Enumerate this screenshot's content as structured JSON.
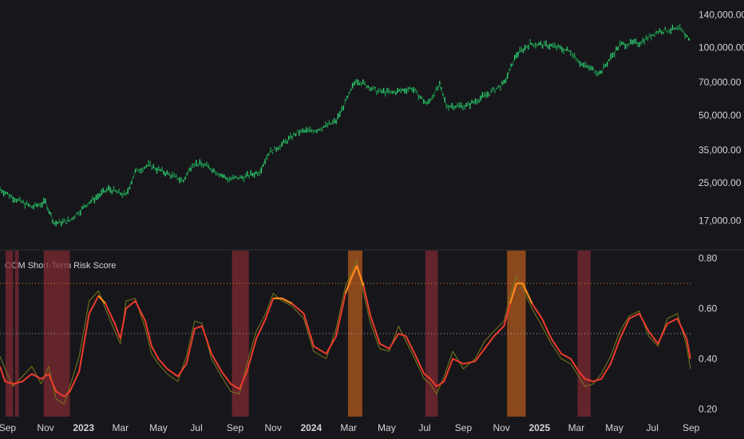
{
  "chart_data": [
    {
      "type": "line",
      "pane": "price",
      "title": "",
      "scale": "log",
      "ylim": [
        14000,
        150000
      ],
      "y_ticks": [
        "140,000.00",
        "100,000.00",
        "70,000.00",
        "50,000.00",
        "35,000.00",
        "25,000.00",
        "17,000.00"
      ],
      "y_tick_values": [
        140000,
        100000,
        70000,
        50000,
        35000,
        25000,
        17000
      ],
      "x": [
        "2022-08-20",
        "2022-09-10",
        "2022-10-10",
        "2022-11-01",
        "2022-11-15",
        "2022-12-10",
        "2023-01-10",
        "2023-02-10",
        "2023-03-10",
        "2023-03-25",
        "2023-04-15",
        "2023-05-15",
        "2023-06-10",
        "2023-06-25",
        "2023-07-15",
        "2023-08-20",
        "2023-09-15",
        "2023-10-10",
        "2023-10-25",
        "2023-11-15",
        "2023-12-10",
        "2024-01-10",
        "2024-02-10",
        "2024-03-13",
        "2024-04-15",
        "2024-05-10",
        "2024-06-10",
        "2024-07-05",
        "2024-07-25",
        "2024-08-05",
        "2024-09-06",
        "2024-10-10",
        "2024-11-05",
        "2024-11-25",
        "2024-12-17",
        "2025-01-20",
        "2025-02-20",
        "2025-03-10",
        "2025-04-08",
        "2025-05-10",
        "2025-06-10",
        "2025-07-10",
        "2025-08-14",
        "2025-08-31"
      ],
      "series": [
        {
          "values": [
            23500,
            21500,
            19500,
            20500,
            16500,
            17000,
            20500,
            23500,
            22000,
            28000,
            30000,
            27500,
            25500,
            30500,
            30000,
            26000,
            26500,
            28000,
            34000,
            37000,
            42000,
            43000,
            47000,
            72000,
            64000,
            63000,
            66000,
            56000,
            68000,
            55000,
            55000,
            62000,
            69000,
            93000,
            104000,
            102000,
            96000,
            84000,
            77000,
            103000,
            105000,
            118000,
            121000,
            108000
          ],
          "color": "#22c55e"
        }
      ]
    },
    {
      "type": "line",
      "pane": "indicator",
      "title": "OCM Short-Term Risk Score",
      "ylim": [
        0.17,
        0.83
      ],
      "y_ticks": [
        "0.80",
        "0.60",
        "0.40",
        "0.20"
      ],
      "y_tick_values": [
        0.8,
        0.6,
        0.4,
        0.2
      ],
      "reference_lines": [
        {
          "value": 0.7,
          "color": "#e67e22",
          "style": "dotted"
        },
        {
          "value": 0.5,
          "color": "#9ca3af",
          "style": "dotted"
        }
      ],
      "x_ticks": [
        "Sep",
        "Nov",
        "2023",
        "Mar",
        "May",
        "Jul",
        "Sep",
        "Nov",
        "2024",
        "Mar",
        "May",
        "Jul",
        "Sep",
        "Nov",
        "2025",
        "Mar",
        "May",
        "Jul",
        "Sep"
      ],
      "x_tick_dates": [
        "2022-09-01",
        "2022-11-01",
        "2023-01-01",
        "2023-03-01",
        "2023-05-01",
        "2023-07-01",
        "2023-09-01",
        "2023-11-01",
        "2024-01-01",
        "2024-03-01",
        "2024-05-01",
        "2024-07-01",
        "2024-09-01",
        "2024-11-01",
        "2025-01-01",
        "2025-03-01",
        "2025-05-01",
        "2025-07-01",
        "2025-09-01"
      ],
      "x_tick_bold": [
        false,
        false,
        true,
        false,
        false,
        false,
        false,
        false,
        true,
        false,
        false,
        false,
        false,
        false,
        true,
        false,
        false,
        false,
        false
      ],
      "x": [
        "2022-08-20",
        "2022-08-28",
        "2022-09-10",
        "2022-09-25",
        "2022-10-10",
        "2022-10-25",
        "2022-11-06",
        "2022-11-18",
        "2022-12-01",
        "2022-12-10",
        "2022-12-25",
        "2023-01-10",
        "2023-01-25",
        "2023-02-05",
        "2023-02-20",
        "2023-03-01",
        "2023-03-10",
        "2023-03-25",
        "2023-04-10",
        "2023-04-20",
        "2023-05-01",
        "2023-05-15",
        "2023-06-01",
        "2023-06-15",
        "2023-06-28",
        "2023-07-10",
        "2023-07-25",
        "2023-08-10",
        "2023-08-25",
        "2023-09-08",
        "2023-09-20",
        "2023-10-05",
        "2023-10-20",
        "2023-11-01",
        "2023-11-15",
        "2023-12-01",
        "2023-12-20",
        "2024-01-05",
        "2024-01-25",
        "2024-02-10",
        "2024-02-25",
        "2024-03-05",
        "2024-03-14",
        "2024-03-25",
        "2024-04-05",
        "2024-04-20",
        "2024-05-05",
        "2024-05-20",
        "2024-06-01",
        "2024-06-15",
        "2024-06-30",
        "2024-07-10",
        "2024-07-20",
        "2024-08-01",
        "2024-08-15",
        "2024-09-01",
        "2024-09-20",
        "2024-10-05",
        "2024-10-20",
        "2024-11-05",
        "2024-11-15",
        "2024-11-25",
        "2024-12-05",
        "2024-12-20",
        "2025-01-05",
        "2025-01-20",
        "2025-02-05",
        "2025-02-20",
        "2025-03-05",
        "2025-03-15",
        "2025-03-28",
        "2025-04-10",
        "2025-04-25",
        "2025-05-10",
        "2025-05-25",
        "2025-06-10",
        "2025-06-25",
        "2025-07-10",
        "2025-07-25",
        "2025-08-10",
        "2025-08-25",
        "2025-08-31"
      ],
      "series": [
        {
          "name": "",
          "color": "#ef3b2c",
          "values": [
            0.37,
            0.31,
            0.3,
            0.31,
            0.34,
            0.32,
            0.34,
            0.27,
            0.25,
            0.27,
            0.35,
            0.58,
            0.65,
            0.62,
            0.54,
            0.48,
            0.6,
            0.63,
            0.55,
            0.45,
            0.4,
            0.36,
            0.33,
            0.38,
            0.52,
            0.53,
            0.42,
            0.35,
            0.3,
            0.28,
            0.35,
            0.48,
            0.56,
            0.64,
            0.64,
            0.62,
            0.58,
            0.45,
            0.42,
            0.49,
            0.66,
            0.72,
            0.77,
            0.69,
            0.57,
            0.46,
            0.44,
            0.5,
            0.49,
            0.42,
            0.34,
            0.32,
            0.29,
            0.31,
            0.4,
            0.38,
            0.39,
            0.44,
            0.49,
            0.53,
            0.62,
            0.7,
            0.7,
            0.62,
            0.56,
            0.48,
            0.42,
            0.4,
            0.35,
            0.32,
            0.31,
            0.32,
            0.38,
            0.48,
            0.56,
            0.58,
            0.51,
            0.46,
            0.54,
            0.56,
            0.48,
            0.4
          ]
        },
        {
          "name": "",
          "color": "#7a7a1a",
          "values": [
            0.41,
            0.36,
            0.29,
            0.33,
            0.37,
            0.3,
            0.37,
            0.24,
            0.22,
            0.29,
            0.41,
            0.63,
            0.67,
            0.6,
            0.51,
            0.46,
            0.63,
            0.64,
            0.52,
            0.42,
            0.38,
            0.34,
            0.31,
            0.41,
            0.55,
            0.54,
            0.4,
            0.33,
            0.27,
            0.26,
            0.38,
            0.51,
            0.58,
            0.66,
            0.63,
            0.61,
            0.56,
            0.43,
            0.4,
            0.52,
            0.69,
            0.74,
            0.79,
            0.66,
            0.54,
            0.44,
            0.43,
            0.53,
            0.47,
            0.4,
            0.32,
            0.3,
            0.26,
            0.33,
            0.43,
            0.36,
            0.4,
            0.47,
            0.51,
            0.55,
            0.65,
            0.73,
            0.68,
            0.6,
            0.53,
            0.46,
            0.4,
            0.38,
            0.33,
            0.29,
            0.3,
            0.34,
            0.41,
            0.51,
            0.57,
            0.59,
            0.49,
            0.45,
            0.56,
            0.58,
            0.45,
            0.36
          ]
        }
      ],
      "shaded_bands": [
        {
          "start": "2022-08-29",
          "end": "2022-09-10",
          "color": "#7f2a33"
        },
        {
          "start": "2022-09-13",
          "end": "2022-09-19",
          "color": "#7f2a33"
        },
        {
          "start": "2022-10-29",
          "end": "2022-12-10",
          "color": "#7f2a33"
        },
        {
          "start": "2023-08-27",
          "end": "2023-09-23",
          "color": "#7f2a33"
        },
        {
          "start": "2024-02-29",
          "end": "2024-03-23",
          "color": "#b35a1f"
        },
        {
          "start": "2024-07-02",
          "end": "2024-07-22",
          "color": "#7f2a33"
        },
        {
          "start": "2024-11-10",
          "end": "2024-12-10",
          "color": "#b35a1f"
        },
        {
          "start": "2025-03-03",
          "end": "2025-03-24",
          "color": "#7f2a33"
        }
      ]
    }
  ]
}
